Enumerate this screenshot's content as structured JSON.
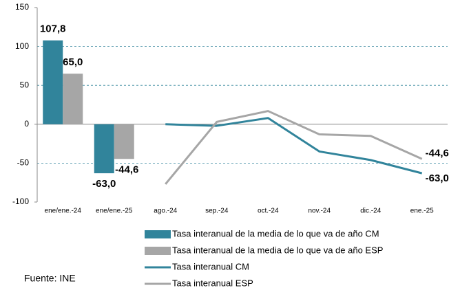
{
  "chart_data": {
    "type": "combo",
    "categories": [
      "ene/ene.-24",
      "ene/ene.-25",
      "ago.-24",
      "sep.-24",
      "oct.-24",
      "nov.-24",
      "dic.-24",
      "ene.-25"
    ],
    "series": [
      {
        "name": "Tasa interanual de la media de lo que va de año CM",
        "type": "bar",
        "color": "#31849b",
        "values": [
          107.8,
          -63.0,
          null,
          null,
          null,
          null,
          null,
          null
        ],
        "value_labels": [
          "107,8",
          "-63,0",
          null,
          null,
          null,
          null,
          null,
          null
        ]
      },
      {
        "name": "Tasa interanual de la media de lo que va de año ESP",
        "type": "bar",
        "color": "#a6a6a6",
        "values": [
          65.0,
          -44.6,
          null,
          null,
          null,
          null,
          null,
          null
        ],
        "value_labels": [
          "65,0",
          "-44,6",
          null,
          null,
          null,
          null,
          null,
          null
        ]
      },
      {
        "name": "Tasa interanual CM",
        "type": "line",
        "color": "#31849b",
        "values": [
          null,
          null,
          0,
          -2,
          8,
          -35,
          -46,
          -63.0
        ],
        "value_labels": [
          null,
          null,
          null,
          null,
          null,
          null,
          null,
          "-63,0"
        ]
      },
      {
        "name": "Tasa interanual ESP",
        "type": "line",
        "color": "#a6a6a6",
        "values": [
          null,
          null,
          -77,
          3,
          17,
          -13,
          -15,
          -44.6
        ],
        "value_labels": [
          null,
          null,
          null,
          null,
          null,
          null,
          null,
          "-44,6"
        ]
      }
    ],
    "ylim": [
      -100,
      150
    ],
    "yticks": [
      -100,
      -50,
      0,
      50,
      100,
      150
    ],
    "grid": true,
    "note": "Fuente: INE"
  }
}
